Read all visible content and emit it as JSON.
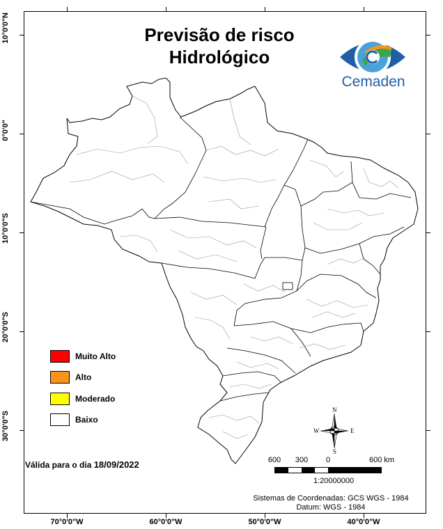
{
  "title": {
    "line1": "Previsão de risco",
    "line2": "Hidrológico"
  },
  "logo": {
    "name": "Cemaden",
    "icon": "eye-icon"
  },
  "grid": {
    "latitudes": [
      "10°0'0\"N",
      "0°0'0\"",
      "10°0'0\"S",
      "20°0'0\"S",
      "30°0'0\"S"
    ],
    "longitudes": [
      "70°0'0\"W",
      "60°0'0\"W",
      "50°0'0\"W",
      "40°0'0\"W"
    ]
  },
  "legend": [
    {
      "label": "Muito Alto",
      "color": "#ff0000"
    },
    {
      "label": "Alto",
      "color": "#f7941d"
    },
    {
      "label": "Moderado",
      "color": "#ffff00"
    },
    {
      "label": "Baixo",
      "color": "#ffffff"
    }
  ],
  "validity": {
    "prefix": "Válida para o dia ",
    "date": "18/09/2022"
  },
  "scale": {
    "ticks": [
      "600",
      "300",
      "0",
      "600 km"
    ],
    "ratio": "1:20000000"
  },
  "compass": {
    "n": "N",
    "s": "S",
    "e": "E",
    "w": "W"
  },
  "crs": {
    "line1": "Sistemas de Coordenadas: GCS WGS - 1984",
    "line2": "Datum: WGS - 1984"
  }
}
